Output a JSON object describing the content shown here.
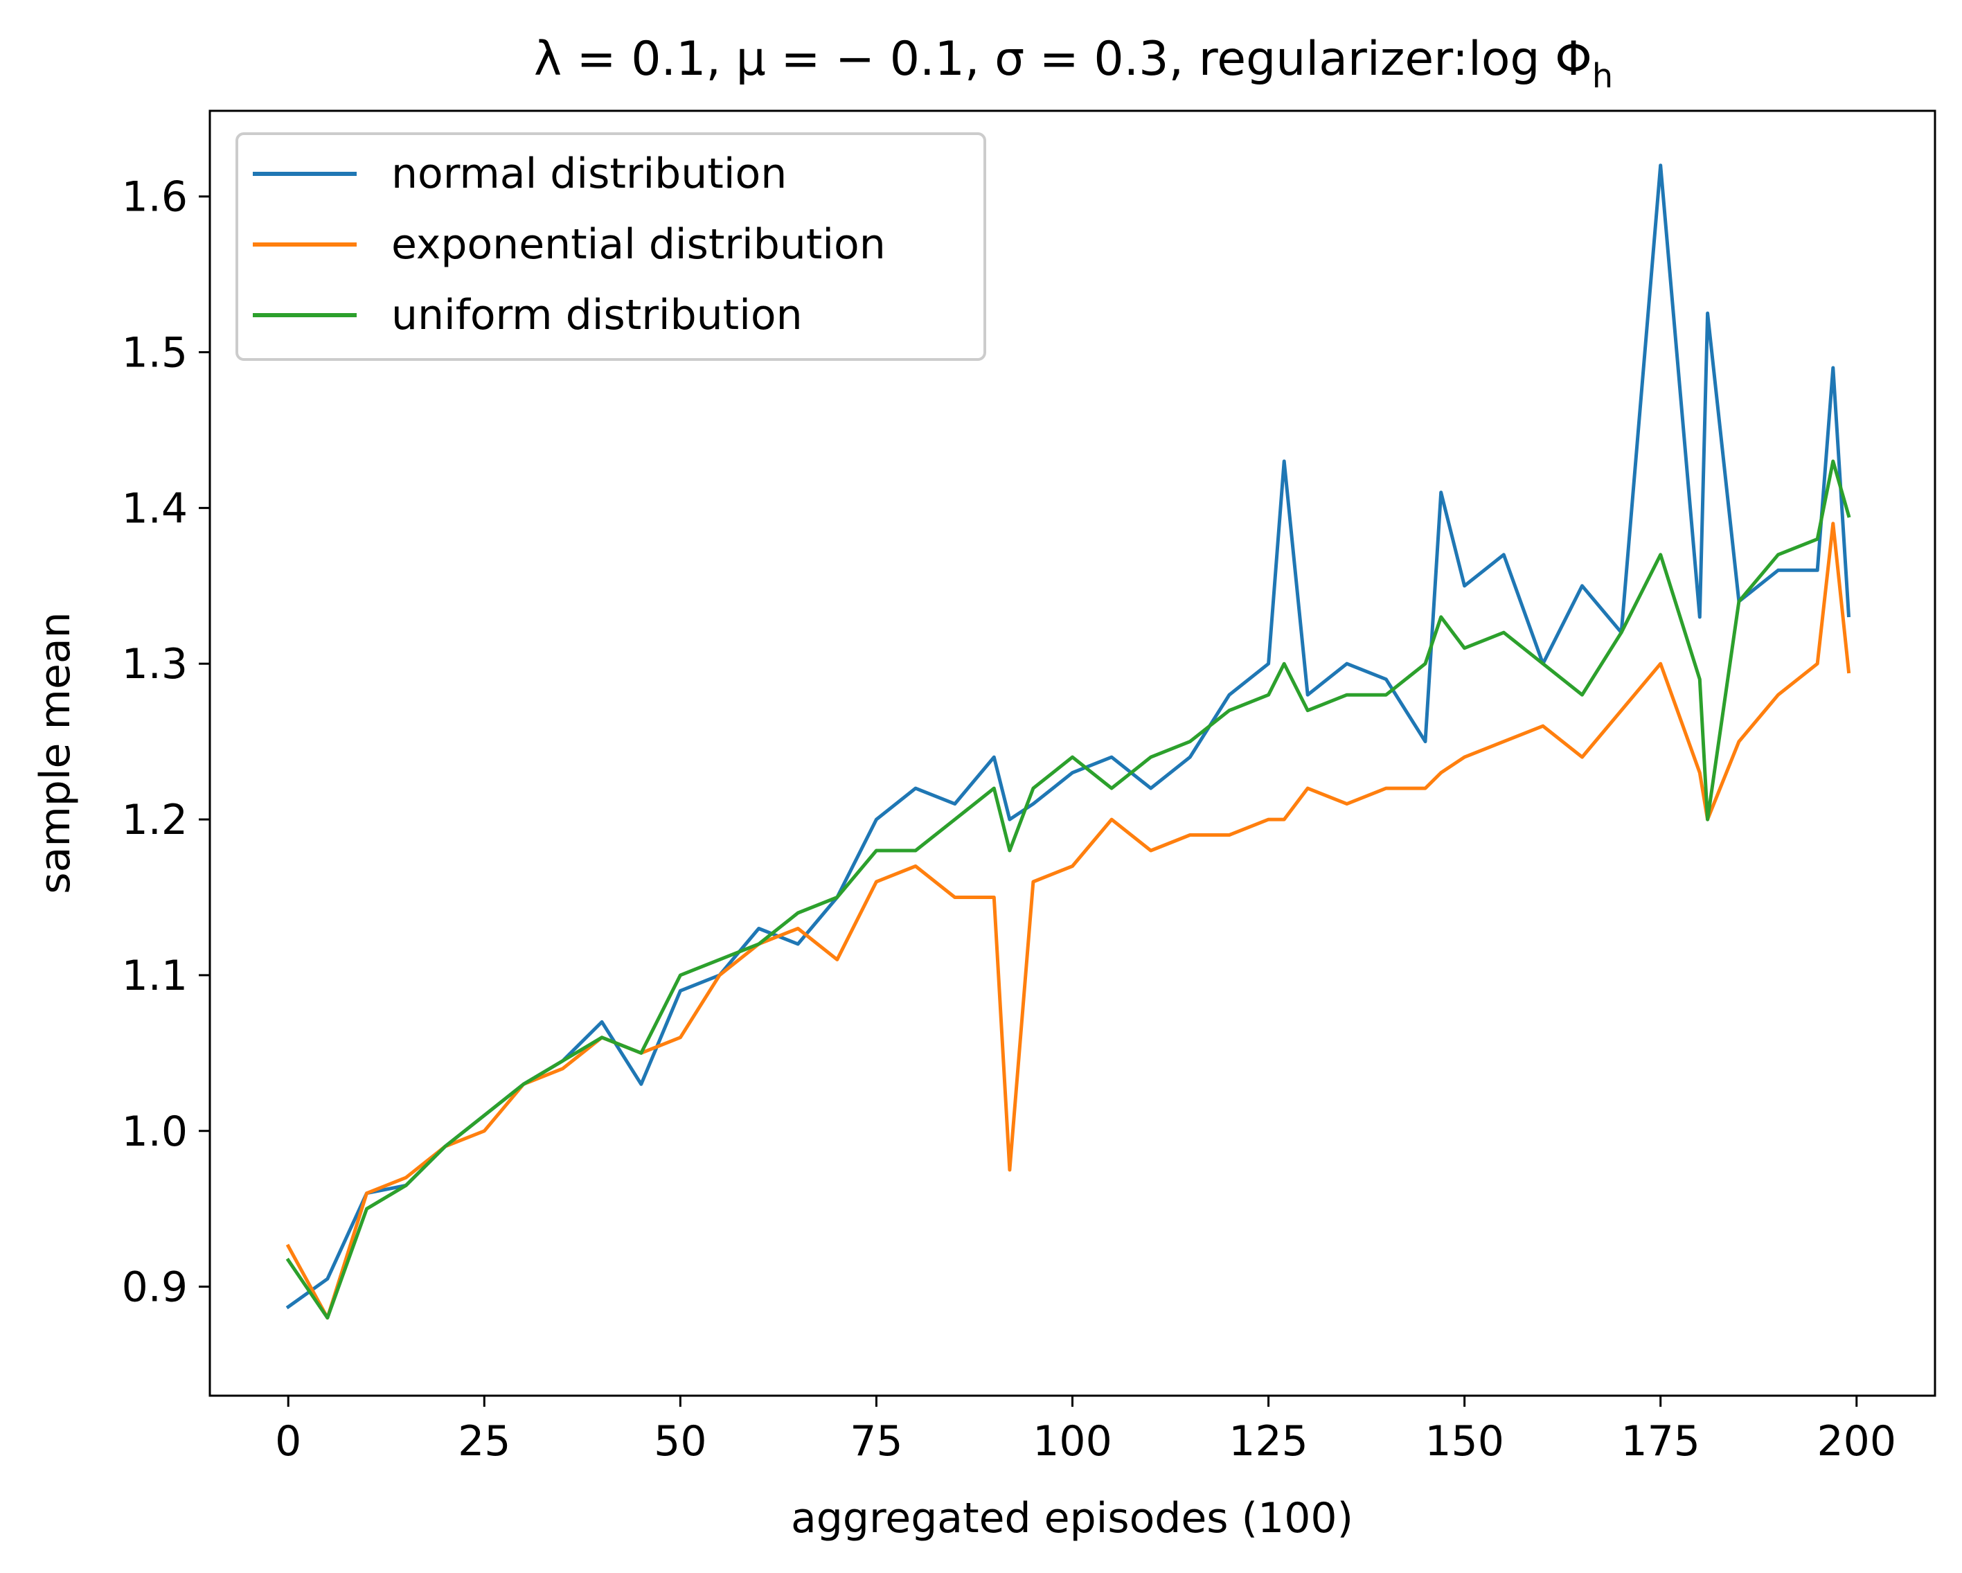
{
  "chart_data": {
    "type": "line",
    "title": "λ = 0.1, μ = − 0.1, σ = 0.3, regularizer:log Φ",
    "title_subscript": "h",
    "xlabel": "aggregated episodes (100)",
    "ylabel": "sample mean",
    "xlim": [
      -10,
      210
    ],
    "ylim": [
      0.83,
      1.655
    ],
    "x_ticks": [
      0,
      25,
      50,
      75,
      100,
      125,
      150,
      175,
      200
    ],
    "x_tick_labels": [
      "0",
      "25",
      "50",
      "75",
      "100",
      "125",
      "150",
      "175",
      "200"
    ],
    "y_ticks": [
      0.9,
      1.0,
      1.1,
      1.2,
      1.3,
      1.4,
      1.5,
      1.6
    ],
    "y_tick_labels": [
      "0.9",
      "1.0",
      "1.1",
      "1.2",
      "1.3",
      "1.4",
      "1.5",
      "1.6"
    ],
    "grid": false,
    "legend_position": "top-left",
    "x": [
      0,
      5,
      10,
      15,
      20,
      25,
      30,
      35,
      40,
      45,
      50,
      55,
      60,
      65,
      70,
      75,
      80,
      85,
      90,
      92,
      95,
      100,
      105,
      110,
      115,
      120,
      125,
      127,
      130,
      135,
      140,
      145,
      147,
      150,
      155,
      160,
      165,
      170,
      175,
      180,
      181,
      185,
      190,
      195,
      197,
      199
    ],
    "series": [
      {
        "name": "normal distribution",
        "color": "#1f77b4",
        "values": [
          0.887,
          0.905,
          0.96,
          0.965,
          0.99,
          1.01,
          1.03,
          1.045,
          1.07,
          1.03,
          1.09,
          1.1,
          1.13,
          1.12,
          1.15,
          1.2,
          1.22,
          1.21,
          1.24,
          1.2,
          1.21,
          1.23,
          1.24,
          1.22,
          1.24,
          1.28,
          1.3,
          1.43,
          1.28,
          1.3,
          1.29,
          1.25,
          1.41,
          1.35,
          1.37,
          1.3,
          1.35,
          1.32,
          1.62,
          1.33,
          1.525,
          1.34,
          1.36,
          1.36,
          1.49,
          1.331
        ]
      },
      {
        "name": "exponential distribution",
        "color": "#ff7f0e",
        "values": [
          0.926,
          0.88,
          0.96,
          0.97,
          0.99,
          1.0,
          1.03,
          1.04,
          1.06,
          1.05,
          1.06,
          1.1,
          1.12,
          1.13,
          1.11,
          1.16,
          1.17,
          1.15,
          1.15,
          0.975,
          1.16,
          1.17,
          1.2,
          1.18,
          1.19,
          1.19,
          1.2,
          1.2,
          1.22,
          1.21,
          1.22,
          1.22,
          1.23,
          1.24,
          1.25,
          1.26,
          1.24,
          1.27,
          1.3,
          1.23,
          1.2,
          1.25,
          1.28,
          1.3,
          1.39,
          1.295
        ]
      },
      {
        "name": "uniform distribution",
        "color": "#2ca02c",
        "values": [
          0.917,
          0.88,
          0.95,
          0.965,
          0.99,
          1.01,
          1.03,
          1.045,
          1.06,
          1.05,
          1.1,
          1.11,
          1.12,
          1.14,
          1.15,
          1.18,
          1.18,
          1.2,
          1.22,
          1.18,
          1.22,
          1.24,
          1.22,
          1.24,
          1.25,
          1.27,
          1.28,
          1.3,
          1.27,
          1.28,
          1.28,
          1.3,
          1.33,
          1.31,
          1.32,
          1.3,
          1.28,
          1.32,
          1.37,
          1.29,
          1.2,
          1.34,
          1.37,
          1.38,
          1.43,
          1.395
        ]
      }
    ]
  }
}
